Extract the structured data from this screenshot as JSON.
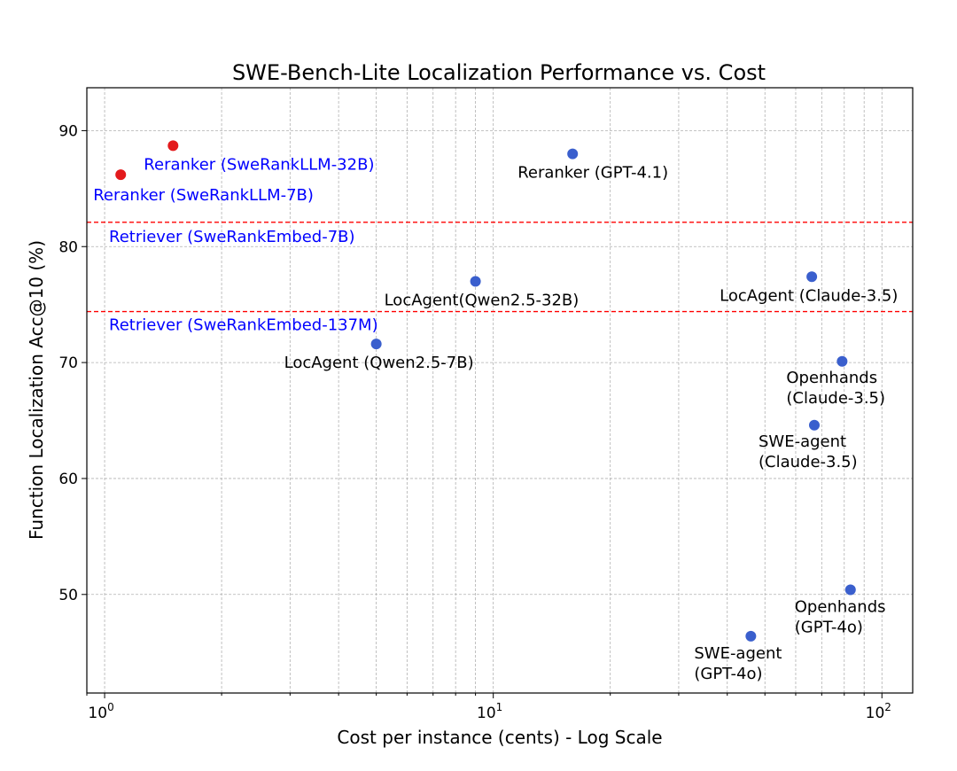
{
  "chart_data": {
    "type": "scatter",
    "title": "SWE-Bench-Lite Localization Performance vs. Cost",
    "xlabel": "Cost per instance (cents) - Log Scale",
    "ylabel": "Function Localization Acc@10 (%)",
    "xscale": "log",
    "xlim": [
      0.9,
      120
    ],
    "ylim": [
      41.5,
      93.7
    ],
    "xticks": [
      {
        "value": 1,
        "base": "10",
        "exp": "0"
      },
      {
        "value": 10,
        "base": "10",
        "exp": "1"
      },
      {
        "value": 100,
        "base": "10",
        "exp": "2"
      }
    ],
    "yticks": [
      50,
      60,
      70,
      80,
      90
    ],
    "grid": true,
    "points": [
      {
        "x": 1.5,
        "y": 88.7,
        "color": "#e31a1c",
        "label": "Reranker (SweRankLLM-32B)",
        "label_color": "#0000ff"
      },
      {
        "x": 1.1,
        "y": 86.2,
        "color": "#e31a1c",
        "label": "Reranker (SweRankLLM-7B)",
        "label_color": "#0000ff"
      },
      {
        "x": 16,
        "y": 88.0,
        "color": "#3a5fcd",
        "label": "Reranker (GPT-4.1)",
        "label_color": "#000000"
      },
      {
        "x": 9,
        "y": 77.0,
        "color": "#3a5fcd",
        "label": "LocAgent(Qwen2.5-32B)",
        "label_color": "#000000"
      },
      {
        "x": 5,
        "y": 71.6,
        "color": "#3a5fcd",
        "label": "LocAgent (Qwen2.5-7B)",
        "label_color": "#000000"
      },
      {
        "x": 66,
        "y": 77.4,
        "color": "#3a5fcd",
        "label": "LocAgent (Claude-3.5)",
        "label_color": "#000000"
      },
      {
        "x": 79,
        "y": 70.1,
        "color": "#3a5fcd",
        "label": [
          "Openhands",
          "(Claude-3.5)"
        ],
        "label_color": "#000000"
      },
      {
        "x": 67,
        "y": 64.6,
        "color": "#3a5fcd",
        "label": [
          "SWE-agent",
          "(Claude-3.5)"
        ],
        "label_color": "#000000"
      },
      {
        "x": 83,
        "y": 50.4,
        "color": "#3a5fcd",
        "label": [
          "Openhands",
          "(GPT-4o)"
        ],
        "label_color": "#000000"
      },
      {
        "x": 46,
        "y": 46.4,
        "color": "#3a5fcd",
        "label": [
          "SWE-agent",
          "(GPT-4o)"
        ],
        "label_color": "#000000"
      }
    ],
    "reference_lines": [
      {
        "y": 82.1,
        "color": "#ff0000",
        "style": "dashed",
        "label": "Retriever (SweRankEmbed-7B)",
        "label_color": "#0000ff"
      },
      {
        "y": 74.4,
        "color": "#ff0000",
        "style": "dashed",
        "label": "Retriever (SweRankEmbed-137M)",
        "label_color": "#0000ff"
      }
    ]
  }
}
